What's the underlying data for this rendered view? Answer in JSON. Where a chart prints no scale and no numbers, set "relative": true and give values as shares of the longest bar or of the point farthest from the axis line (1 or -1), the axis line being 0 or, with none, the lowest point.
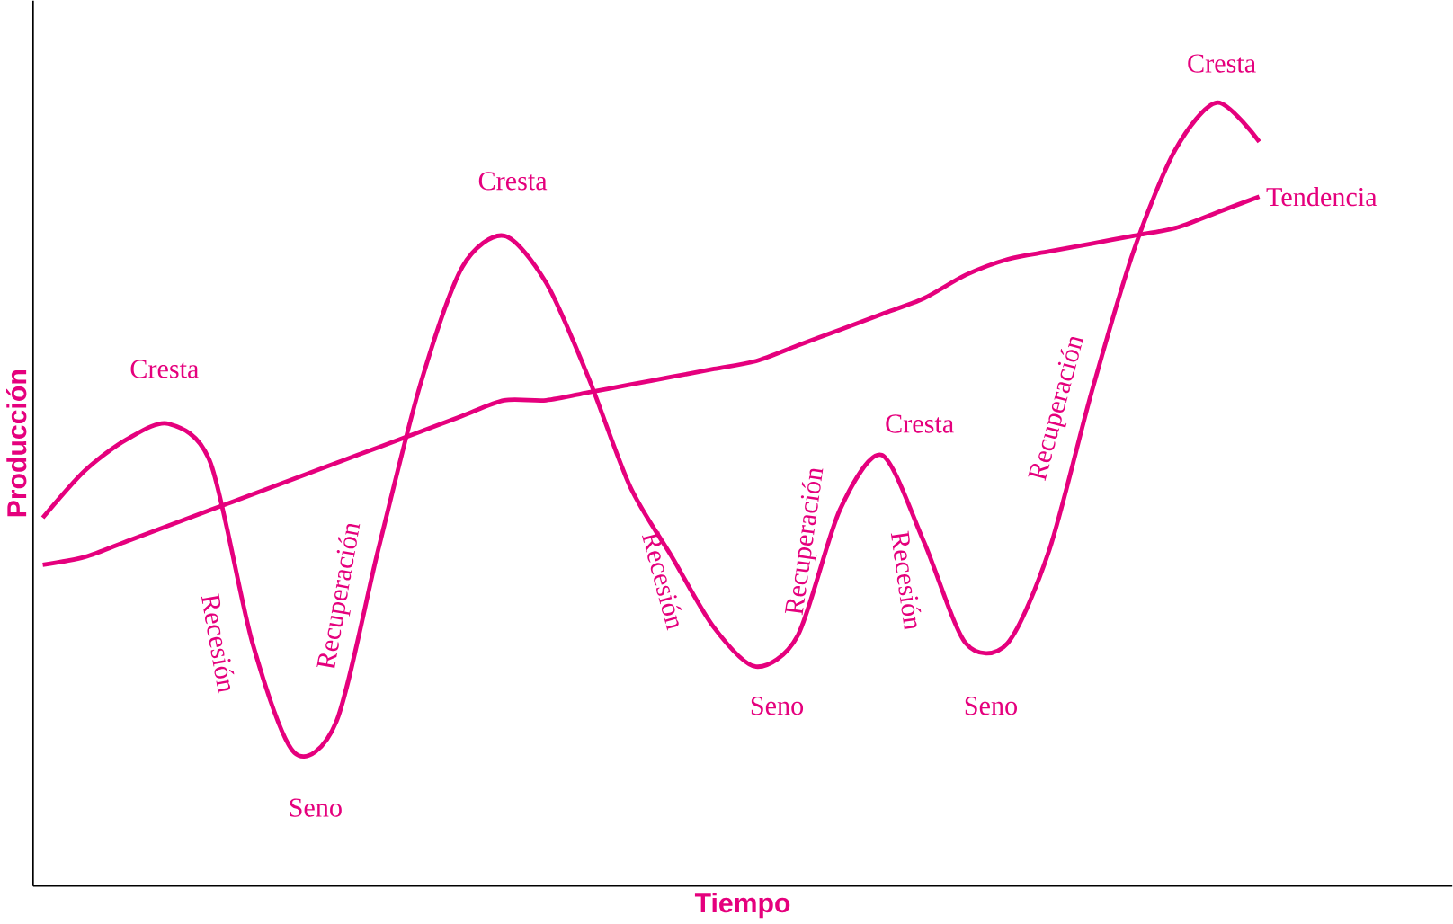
{
  "chart_data": {
    "type": "line",
    "relative": true,
    "xlabel": "Tiempo",
    "ylabel": "Producción",
    "categories": [
      null,
      null,
      null,
      null,
      null,
      null,
      null,
      null,
      null,
      null,
      null,
      null,
      null,
      null,
      null,
      null,
      null,
      null,
      null,
      null,
      null,
      null,
      null,
      null,
      null,
      null,
      null,
      null,
      null,
      null
    ],
    "series": [
      {
        "color": "#e5007d",
        "values": [
          0.47,
          0.53,
          0.57,
          0.59,
          0.54,
          0.31,
          0.17,
          0.21,
          0.43,
          0.64,
          0.79,
          0.83,
          0.77,
          0.65,
          0.51,
          0.42,
          0.33,
          0.28,
          0.32,
          0.48,
          0.55,
          0.44,
          0.31,
          0.31,
          0.43,
          0.63,
          0.81,
          0.94,
          1.0,
          0.95
        ]
      },
      {
        "name": "Tendencia",
        "color": "#e5007d",
        "values": [
          0.41,
          0.42,
          0.44,
          0.46,
          0.48,
          0.5,
          0.52,
          0.54,
          0.56,
          0.58,
          0.6,
          0.62,
          0.62,
          0.63,
          0.64,
          0.65,
          0.66,
          0.67,
          0.69,
          0.71,
          0.73,
          0.75,
          0.78,
          0.8,
          0.81,
          0.82,
          0.83,
          0.84,
          0.86,
          0.88
        ]
      }
    ],
    "annotations": [
      "Cresta",
      "Recesión",
      "Recuperación",
      "Seno",
      "Cresta",
      "Recesión",
      "Seno",
      "Recuperación",
      "Cresta",
      "Recesión",
      "Seno",
      "Recuperación",
      "Cresta"
    ],
    "legend": false,
    "marker": "none",
    "line_style": "solid"
  }
}
